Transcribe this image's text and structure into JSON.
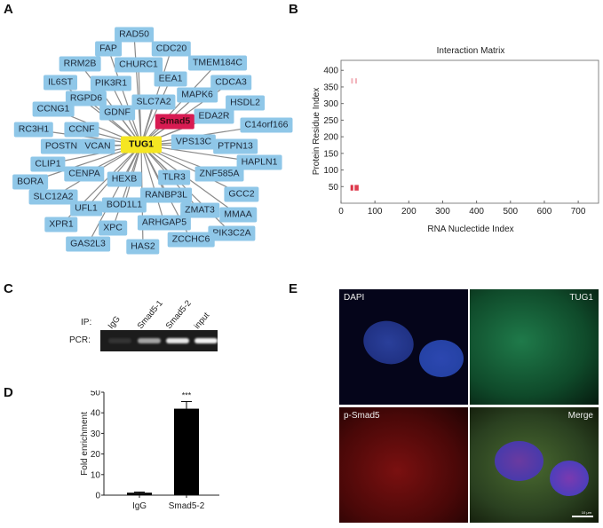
{
  "panels": {
    "a": "A",
    "b": "B",
    "c": "C",
    "d": "D",
    "e": "E"
  },
  "network": {
    "center": "TUG1",
    "hub": "Smad5",
    "nodes": [
      "RAD50",
      "FAP",
      "CDC20",
      "RRM2B",
      "CHURC1",
      "TMEM184C",
      "IL6ST",
      "PIK3R1",
      "EEA1",
      "CDCA3",
      "RGPD6",
      "SLC7A2",
      "MAPK6",
      "CCNG1",
      "GDNF",
      "HSDL2",
      "EDA2R",
      "RC3H1",
      "CCNF",
      "C14orf166",
      "POSTN",
      "VCAN",
      "VPS13C",
      "PTPN13",
      "CLIP1",
      "HAPLN1",
      "CENPA",
      "BORA",
      "HEXB",
      "TLR3",
      "ZNF585A",
      "SLC12A2",
      "RANBP3L",
      "GCC2",
      "UFL1",
      "BOD1L1",
      "ZMAT3",
      "MMAA",
      "XPR1",
      "XPC",
      "ARHGAP5",
      "PIK3C2A",
      "GAS2L3",
      "HAS2",
      "ZCCHC6"
    ],
    "colors": {
      "node": "#8fc7e8",
      "center": "#f5e622",
      "hub": "#d81b52",
      "edge": "#8a8a8a"
    }
  },
  "chart_data": [
    {
      "type": "heatmap",
      "title": "Interaction Matrix",
      "xlabel": "RNA Nuclectide Index",
      "ylabel": "Protein Residue Index",
      "xlim": [
        0,
        760
      ],
      "ylim": [
        0,
        430
      ],
      "xticks": [
        0,
        100,
        200,
        300,
        400,
        500,
        600,
        700
      ],
      "yticks": [
        50,
        100,
        150,
        200,
        250,
        300,
        350,
        400
      ],
      "hotspots": [
        {
          "x": [
            28,
            36
          ],
          "y": [
            38,
            55
          ],
          "intensity": 0.9
        },
        {
          "x": [
            40,
            52
          ],
          "y": [
            38,
            55
          ],
          "intensity": 0.85
        },
        {
          "x": [
            30,
            35
          ],
          "y": [
            360,
            376
          ],
          "intensity": 0.35
        },
        {
          "x": [
            42,
            47
          ],
          "y": [
            360,
            376
          ],
          "intensity": 0.35
        }
      ],
      "color": "#d81b30"
    },
    {
      "type": "bar",
      "categories": [
        "IgG",
        "Smad5-2"
      ],
      "values": [
        1.2,
        42
      ],
      "errors": [
        0.3,
        3.5
      ],
      "annotations": [
        "",
        "***"
      ],
      "ylabel": "Fold enrichment",
      "xlabel": "",
      "ylim": [
        0,
        50
      ],
      "yticks": [
        0,
        10,
        20,
        30,
        40,
        50
      ]
    }
  ],
  "gel": {
    "ip_label": "IP:",
    "pcr_label": "PCR:",
    "lanes": [
      "IgG",
      "Smad5-1",
      "Smad5-2",
      "input"
    ],
    "band_intensity": [
      0.1,
      0.6,
      0.9,
      0.95
    ]
  },
  "microscopy": {
    "dapi": "DAPI",
    "tug1": "TUG1",
    "psmad5": "p-Smad5",
    "merge": "Merge",
    "scale": "10 μm"
  }
}
